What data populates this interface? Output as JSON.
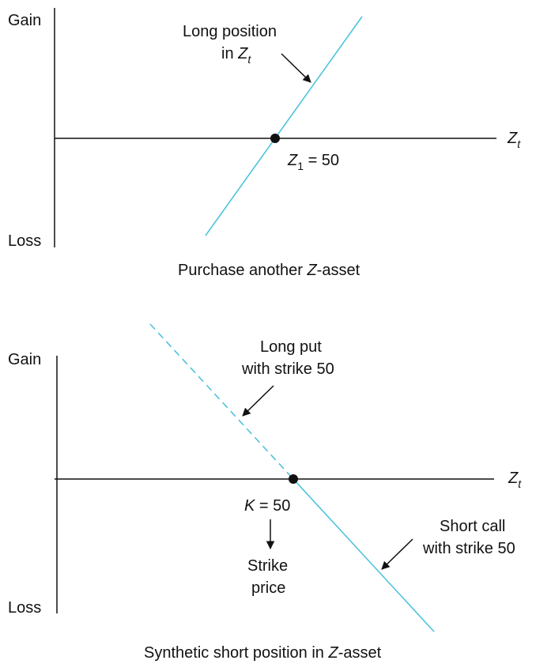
{
  "top_panel": {
    "axis_gain": "Gain",
    "axis_loss": "Loss",
    "x_axis_var": "Z",
    "x_axis_sub": "t",
    "line_label_1": "Long position",
    "line_label_2_prefix": "in ",
    "line_label_2_var": "Z",
    "line_label_2_sub": "t",
    "point_var": "Z",
    "point_sub": "1",
    "point_value": " = 50",
    "caption_prefix": "Purchase another ",
    "caption_var": "Z",
    "caption_suffix": "-asset"
  },
  "bottom_panel": {
    "axis_gain": "Gain",
    "axis_loss": "Loss",
    "x_axis_var": "Z",
    "x_axis_sub": "t",
    "put_label_1": "Long put",
    "put_label_2": "with strike 50",
    "call_label_1": "Short call",
    "call_label_2": "with strike 50",
    "strike_var": "K",
    "strike_value": " = 50",
    "strike_note_1": "Strike",
    "strike_note_2": "price",
    "caption_prefix": "Synthetic short position in ",
    "caption_var": "Z",
    "caption_suffix": "-asset"
  },
  "colors": {
    "payoff_line": "#4fc3dd",
    "axis": "#111111"
  }
}
